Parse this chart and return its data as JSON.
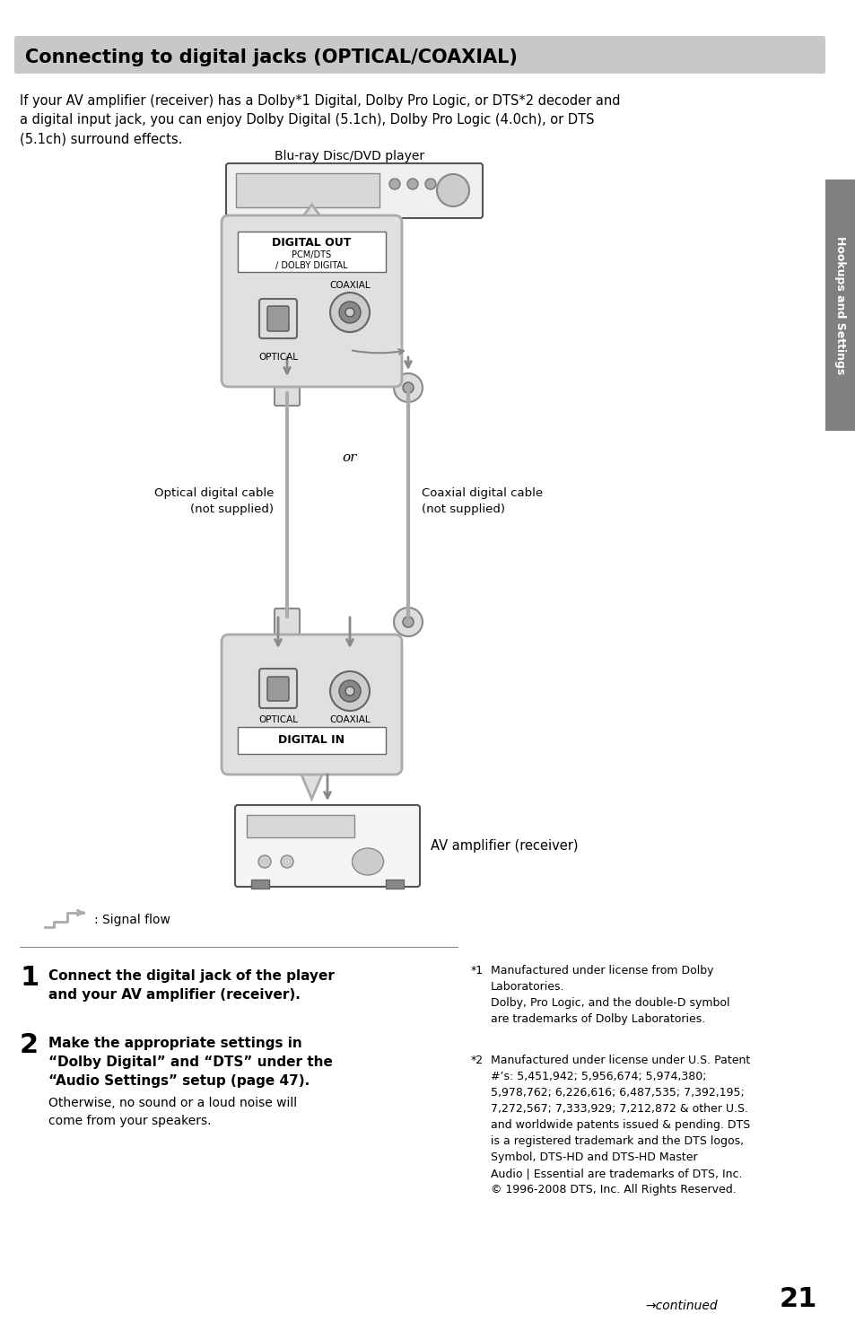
{
  "title": "Connecting to digital jacks (OPTICAL/COAXIAL)",
  "title_bg": "#c8c8c8",
  "page_bg": "#ffffff",
  "body_text": "If your AV amplifier (receiver) has a Dolby*1 Digital, Dolby Pro Logic, or DTS*2 decoder and\na digital input jack, you can enjoy Dolby Digital (5.1ch), Dolby Pro Logic (4.0ch), or DTS\n(5.1ch) surround effects.",
  "bluray_label": "Blu-ray Disc/DVD player",
  "digital_out_label": "DIGITAL OUT",
  "digital_out_sublabel": "PCM/DTS\n/ DOLBY DIGITAL",
  "coaxial_upper_label": "COAXIAL",
  "optical_upper_label": "OPTICAL",
  "or_text": "or",
  "optical_cable_label": "Optical digital cable\n(not supplied)",
  "coaxial_cable_label": "Coaxial digital cable\n(not supplied)",
  "optical_in_label": "OPTICAL",
  "coaxial_in_label": "COAXIAL",
  "digital_in_label": "DIGITAL IN",
  "av_amp_label": "AV amplifier (receiver)",
  "signal_flow_label": ": Signal flow",
  "step1_num": "1",
  "step1_bold": "Connect the digital jack of the player\nand your AV amplifier (receiver).",
  "step2_num": "2",
  "step2_bold": "Make the appropriate settings in\n“Dolby Digital” and “DTS” under the\n“Audio Settings” setup (page 47).",
  "step2_normal": "Otherwise, no sound or a loud noise will\ncome from your speakers.",
  "note1_num": "*1",
  "note1_text": "Manufactured under license from Dolby\nLaboratories.\nDolby, Pro Logic, and the double-D symbol\nare trademarks of Dolby Laboratories.",
  "note2_num": "*2",
  "note2_text": "Manufactured under license under U.S. Patent\n#’s: 5,451,942; 5,956,674; 5,974,380;\n5,978,762; 6,226,616; 6,487,535; 7,392,195;\n7,272,567; 7,333,929; 7,212,872 & other U.S.\nand worldwide patents issued & pending. DTS\nis a registered trademark and the DTS logos,\nSymbol, DTS-HD and DTS-HD Master\nAudio | Essential are trademarks of DTS, Inc.\n© 1996-2008 DTS, Inc. All Rights Reserved.",
  "continued_text": "→continued",
  "page_num": "21",
  "sidebar_text": "Hookups and Settings",
  "sidebar_bg": "#808080"
}
